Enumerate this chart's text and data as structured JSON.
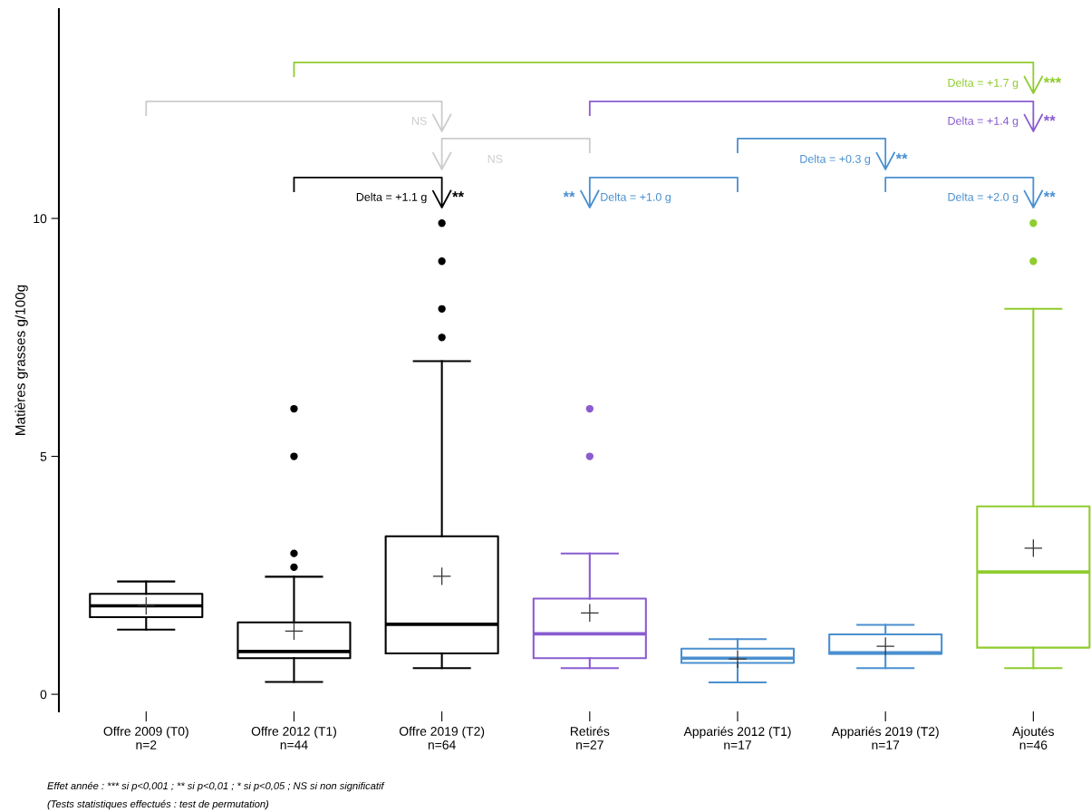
{
  "chart_data": {
    "type": "box",
    "ylabel": "Matières grasses g/100g",
    "categories": [
      "Offre 2009 (T0)\nn=2",
      "Offre 2012 (T1)\nn=44",
      "Offre 2019 (T2)\nn=64",
      "Retirés\nn=27",
      "Appariés 2012 (T1)\nn=17",
      "Appariés 2019 (T2)\nn=17",
      "Ajoutés\nn=46"
    ],
    "colors": [
      "#000000",
      "#000000",
      "#000000",
      "#8a5cd0",
      "#4a90d0",
      "#4a90d0",
      "#8fcc2e"
    ],
    "boxes": [
      {
        "low": 1.36,
        "q1": 1.62,
        "median": 1.86,
        "q3": 2.11,
        "high": 2.37,
        "mean": 1.86
      },
      {
        "low": 0.26,
        "q1": 0.76,
        "median": 0.9,
        "q3": 1.51,
        "high": 2.47,
        "mean": 1.33,
        "outliers": [
          2.67,
          2.96,
          5.0,
          6.0
        ]
      },
      {
        "low": 0.55,
        "q1": 0.86,
        "median": 1.47,
        "q3": 3.32,
        "high": 7.0,
        "mean": 2.48,
        "outliers": [
          7.5,
          8.1,
          9.1,
          9.9
        ]
      },
      {
        "low": 0.55,
        "q1": 0.76,
        "median": 1.27,
        "q3": 2.01,
        "high": 2.96,
        "mean": 1.71,
        "outliers": [
          5.0,
          6.0
        ]
      },
      {
        "low": 0.25,
        "q1": 0.66,
        "median": 0.76,
        "q3": 0.96,
        "high": 1.16,
        "mean": 0.74
      },
      {
        "low": 0.55,
        "q1": 0.85,
        "median": 0.87,
        "q3": 1.26,
        "high": 1.46,
        "mean": 1.01
      },
      {
        "low": 0.55,
        "q1": 0.98,
        "median": 2.57,
        "q3": 3.95,
        "high": 8.1,
        "mean": 3.07,
        "outliers": [
          9.1,
          9.9
        ]
      }
    ],
    "ylim": [
      -0.36,
      14.4
    ],
    "yticks": [
      0,
      5,
      10
    ],
    "grid": false,
    "annotations": [
      "Delta = +1.7 g",
      "***",
      "NS",
      "Delta = +1.4 g",
      "**",
      "NS",
      "Delta = +0.3 g",
      "**",
      "Delta = +1.1 g",
      "**",
      "**",
      "Delta = +1.0 g",
      "Delta = +2.0 g",
      "**",
      "Effet année : *** si p<0,001 ; ** si p<0,01 ; * si p<0,05 ; NS si non significatif",
      "(Tests statistiques effectués : test de permutation)"
    ]
  }
}
